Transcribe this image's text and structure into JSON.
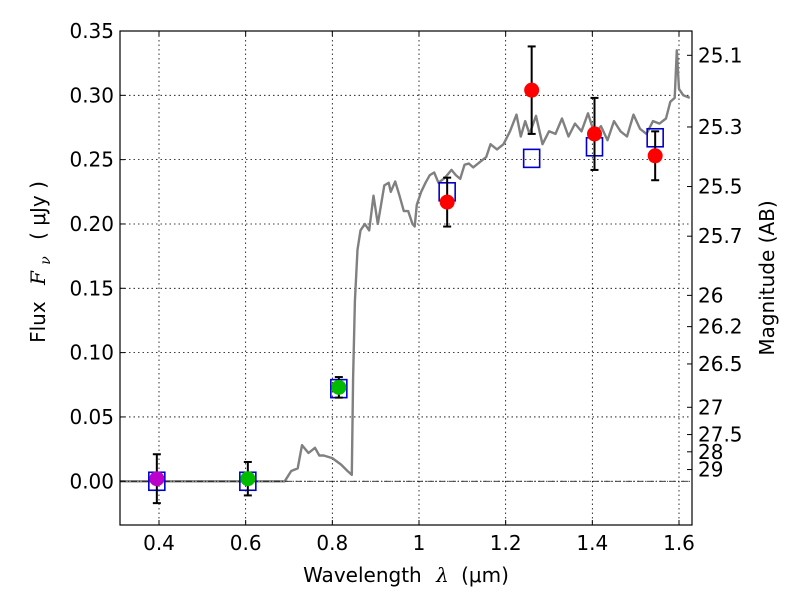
{
  "chart_data": {
    "type": "scatter",
    "xlabel_text": "Wavelength",
    "xlabel_symbol": "λ",
    "xlabel_unit": "(μm)",
    "ylabel_text": "Flux",
    "ylabel_symbol_base": "F",
    "ylabel_symbol_sub": "ν",
    "ylabel_unit": "( μJy )",
    "y2label": "Magnitude (AB)",
    "xlim": [
      0.31,
      1.63
    ],
    "ylim": [
      -0.034,
      0.35
    ],
    "grid": true,
    "x_ticks": [
      0.4,
      0.6,
      0.8,
      1.0,
      1.2,
      1.4,
      1.6
    ],
    "x_tick_labels": [
      "0.4",
      "0.6",
      "0.8",
      "1",
      "1.2",
      "1.4",
      "1.6"
    ],
    "y_ticks": [
      0.0,
      0.05,
      0.1,
      0.15,
      0.2,
      0.25,
      0.3,
      0.35
    ],
    "y_tick_labels": [
      "0.00",
      "0.05",
      "0.10",
      "0.15",
      "0.20",
      "0.25",
      "0.30",
      "0.35"
    ],
    "mag_ticks": [
      {
        "label": "25.1",
        "flux": 0.3311
      },
      {
        "label": "25.3",
        "flux": 0.2754
      },
      {
        "label": "25.5",
        "flux": 0.2291
      },
      {
        "label": "25.7",
        "flux": 0.1905
      },
      {
        "label": "26",
        "flux": 0.1445
      },
      {
        "label": "26.2",
        "flux": 0.1202
      },
      {
        "label": "26.5",
        "flux": 0.0912
      },
      {
        "label": "27",
        "flux": 0.0575
      },
      {
        "label": "27.5",
        "flux": 0.0363
      },
      {
        "label": "28",
        "flux": 0.0229
      },
      {
        "label": "29",
        "flux": 0.0091
      }
    ],
    "model_spectrum": {
      "color": "#808080",
      "x": [
        0.31,
        0.69,
        0.705,
        0.72,
        0.73,
        0.745,
        0.76,
        0.77,
        0.78,
        0.8,
        0.82,
        0.835,
        0.845,
        0.848,
        0.852,
        0.858,
        0.865,
        0.875,
        0.885,
        0.895,
        0.905,
        0.91,
        0.92,
        0.93,
        0.935,
        0.945,
        0.955,
        0.965,
        0.975,
        0.985,
        0.99,
        0.995,
        1.005,
        1.015,
        1.025,
        1.035,
        1.045,
        1.06,
        1.075,
        1.085,
        1.095,
        1.105,
        1.115,
        1.125,
        1.14,
        1.155,
        1.165,
        1.18,
        1.195,
        1.21,
        1.225,
        1.235,
        1.245,
        1.255,
        1.27,
        1.285,
        1.3,
        1.315,
        1.33,
        1.345,
        1.36,
        1.375,
        1.39,
        1.405,
        1.42,
        1.435,
        1.45,
        1.465,
        1.48,
        1.495,
        1.51,
        1.525,
        1.54,
        1.555,
        1.57,
        1.58,
        1.59,
        1.595,
        1.6,
        1.61,
        1.625
      ],
      "y": [
        0.0,
        0.0,
        0.008,
        0.01,
        0.028,
        0.022,
        0.026,
        0.02,
        0.02,
        0.018,
        0.013,
        0.008,
        0.005,
        0.08,
        0.14,
        0.18,
        0.195,
        0.2,
        0.195,
        0.222,
        0.2,
        0.21,
        0.23,
        0.232,
        0.225,
        0.233,
        0.222,
        0.21,
        0.21,
        0.2,
        0.198,
        0.215,
        0.225,
        0.232,
        0.238,
        0.24,
        0.232,
        0.236,
        0.242,
        0.238,
        0.235,
        0.246,
        0.247,
        0.244,
        0.248,
        0.252,
        0.262,
        0.258,
        0.262,
        0.272,
        0.285,
        0.268,
        0.28,
        0.27,
        0.284,
        0.262,
        0.272,
        0.27,
        0.282,
        0.268,
        0.278,
        0.272,
        0.286,
        0.27,
        0.276,
        0.265,
        0.28,
        0.272,
        0.268,
        0.285,
        0.274,
        0.27,
        0.28,
        0.278,
        0.282,
        0.295,
        0.298,
        0.335,
        0.305,
        0.3,
        0.298
      ]
    },
    "model_bands": {
      "color": "#0000cc",
      "marker": "open-square",
      "points": [
        {
          "x": 0.395,
          "y": 0.0
        },
        {
          "x": 0.605,
          "y": 0.0
        },
        {
          "x": 0.815,
          "y": 0.072
        },
        {
          "x": 1.065,
          "y": 0.225
        },
        {
          "x": 1.26,
          "y": 0.251
        },
        {
          "x": 1.405,
          "y": 0.26
        },
        {
          "x": 1.545,
          "y": 0.267
        }
      ]
    },
    "observed": [
      {
        "x": 0.395,
        "y": 0.002,
        "err": 0.019,
        "color": "#bb00cc"
      },
      {
        "x": 0.605,
        "y": 0.002,
        "err": 0.013,
        "color": "#00bb00"
      },
      {
        "x": 0.815,
        "y": 0.073,
        "err": 0.008,
        "color": "#00bb00"
      },
      {
        "x": 1.065,
        "y": 0.217,
        "err": 0.019,
        "color": "#ff0000"
      },
      {
        "x": 1.26,
        "y": 0.304,
        "err": 0.034,
        "color": "#ff0000"
      },
      {
        "x": 1.405,
        "y": 0.27,
        "err": 0.028,
        "color": "#ff0000"
      },
      {
        "x": 1.545,
        "y": 0.253,
        "err": 0.019,
        "color": "#ff0000"
      }
    ],
    "zero_line_color": "#000000"
  }
}
